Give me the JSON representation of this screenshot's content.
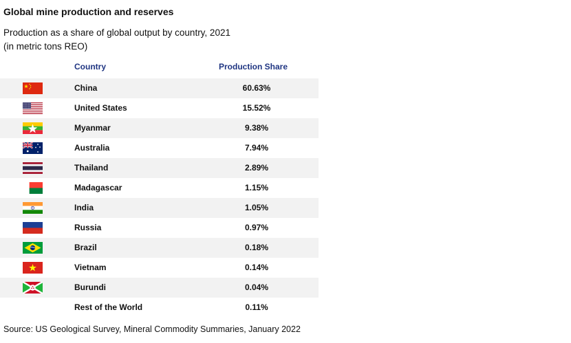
{
  "title": "Global mine production and reserves",
  "subtitle_line1": "Production as a share of global output by country, 2021",
  "subtitle_line2": "(in metric tons REO)",
  "source": "Source: US Geological Survey, Mineral Commodity Summaries, January 2022",
  "colors": {
    "header_text": "#1f3582",
    "row_alt": "#f2f2f2"
  },
  "chart_data": {
    "type": "table",
    "columns": [
      "Country",
      "Production Share"
    ],
    "rows": [
      {
        "country": "China",
        "share": "60.63%",
        "value": 60.63,
        "flag": "china-flag-icon"
      },
      {
        "country": "United States",
        "share": "15.52%",
        "value": 15.52,
        "flag": "usa-flag-icon"
      },
      {
        "country": "Myanmar",
        "share": "9.38%",
        "value": 9.38,
        "flag": "myanmar-flag-icon"
      },
      {
        "country": "Australia",
        "share": "7.94%",
        "value": 7.94,
        "flag": "australia-flag-icon"
      },
      {
        "country": "Thailand",
        "share": "2.89%",
        "value": 2.89,
        "flag": "thailand-flag-icon"
      },
      {
        "country": "Madagascar",
        "share": "1.15%",
        "value": 1.15,
        "flag": "madagascar-flag-icon"
      },
      {
        "country": "India",
        "share": "1.05%",
        "value": 1.05,
        "flag": "india-flag-icon"
      },
      {
        "country": "Russia",
        "share": "0.97%",
        "value": 0.97,
        "flag": "russia-flag-icon"
      },
      {
        "country": "Brazil",
        "share": "0.18%",
        "value": 0.18,
        "flag": "brazil-flag-icon"
      },
      {
        "country": "Vietnam",
        "share": "0.14%",
        "value": 0.14,
        "flag": "vietnam-flag-icon"
      },
      {
        "country": "Burundi",
        "share": "0.04%",
        "value": 0.04,
        "flag": "burundi-flag-icon"
      },
      {
        "country": "Rest of the World",
        "share": "0.11%",
        "value": 0.11,
        "flag": ""
      }
    ]
  }
}
